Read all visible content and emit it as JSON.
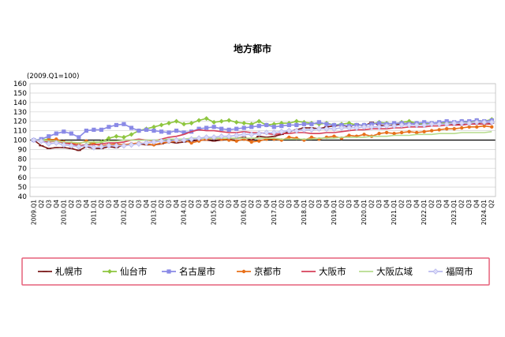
{
  "chart_data": {
    "type": "line",
    "title": "地方都市",
    "subtitle": "(2009.Q1=100)",
    "ylim": [
      40,
      160
    ],
    "ytick_step": 10,
    "grid": true,
    "legend_position": "bottom",
    "baseline": 100,
    "x": [
      "2009.Q1",
      "Q2",
      "Q3",
      "Q4",
      "2010.Q1",
      "Q2",
      "Q3",
      "Q4",
      "2011.Q1",
      "Q2",
      "Q3",
      "Q4",
      "2012.Q1",
      "Q2",
      "Q3",
      "Q4",
      "2013.Q1",
      "Q2",
      "Q3",
      "Q4",
      "2014.Q1",
      "Q2",
      "Q3",
      "Q4",
      "2015.Q1",
      "Q2",
      "Q3",
      "Q4",
      "2016.Q1",
      "Q2",
      "Q3",
      "Q4",
      "2017.Q1",
      "Q2",
      "Q3",
      "Q4",
      "2018.Q1",
      "Q2",
      "Q3",
      "Q4",
      "2019.Q1",
      "Q2",
      "Q3",
      "Q4",
      "2020.Q1",
      "Q2",
      "Q3",
      "Q4",
      "2021.Q1",
      "Q2",
      "Q3",
      "Q4",
      "2022.Q1",
      "Q2",
      "Q3",
      "Q4",
      "2023.Q1",
      "Q2",
      "Q3",
      "Q4",
      "2024.Q1",
      "Q2"
    ],
    "series": [
      {
        "name": "札幌市",
        "color": "#7a1a1a",
        "marker": "dash",
        "values": [
          100,
          94,
          91,
          92,
          92,
          91,
          89,
          93,
          91,
          91,
          93,
          92,
          95,
          96,
          96,
          95,
          95,
          96,
          98,
          97,
          98,
          99,
          100,
          100,
          99,
          100,
          101,
          102,
          103,
          100,
          104,
          103,
          104,
          106,
          109,
          111,
          113,
          113,
          112,
          114,
          115,
          116,
          114,
          117,
          115,
          119,
          116,
          115,
          116,
          117,
          118,
          117,
          116,
          117,
          118,
          118,
          116,
          117,
          118,
          118,
          119,
          118
        ]
      },
      {
        "name": "仙台市",
        "color": "#8ec63f",
        "marker": "diamond",
        "values": [
          100,
          100,
          101,
          100,
          97,
          96,
          94,
          95,
          97,
          98,
          102,
          104,
          103,
          106,
          110,
          112,
          114,
          116,
          118,
          120,
          117,
          118,
          121,
          123,
          119,
          120,
          121,
          119,
          118,
          117,
          120,
          116,
          117,
          118,
          118,
          120,
          119,
          118,
          117,
          118,
          116,
          117,
          118,
          116,
          116,
          117,
          119,
          118,
          117,
          119,
          120,
          118,
          117,
          118,
          117,
          119,
          118,
          120,
          119,
          121,
          120,
          122
        ]
      },
      {
        "name": "名古屋市",
        "color": "#8a8ae6",
        "marker": "square",
        "values": [
          100,
          101,
          104,
          107,
          109,
          107,
          103,
          110,
          111,
          111,
          114,
          116,
          117,
          113,
          110,
          111,
          110,
          109,
          108,
          110,
          108,
          109,
          112,
          113,
          114,
          112,
          111,
          112,
          113,
          114,
          115,
          116,
          114,
          115,
          116,
          116,
          117,
          117,
          119,
          117,
          116,
          116,
          115,
          116,
          116,
          117,
          118,
          117,
          118,
          118,
          117,
          118,
          119,
          118,
          119,
          120,
          119,
          120,
          120,
          121,
          120,
          121
        ]
      },
      {
        "name": "京都市",
        "color": "#e8701a",
        "marker": "dot",
        "values": [
          100,
          99,
          100,
          101,
          98,
          97,
          96,
          99,
          96,
          94,
          95,
          96,
          95,
          96,
          97,
          96,
          95,
          97,
          98,
          99,
          100,
          97,
          99,
          101,
          102,
          101,
          100,
          99,
          101,
          98,
          99,
          101,
          101,
          100,
          103,
          102,
          100,
          103,
          101,
          103,
          104,
          102,
          105,
          104,
          106,
          104,
          107,
          108,
          107,
          108,
          109,
          108,
          109,
          110,
          111,
          112,
          112,
          113,
          114,
          114,
          115,
          114
        ]
      },
      {
        "name": "大阪市",
        "color": "#d6405a",
        "marker": "none",
        "values": [
          100,
          99,
          98,
          99,
          97,
          96,
          94,
          95,
          95,
          96,
          97,
          97,
          98,
          100,
          101,
          100,
          99,
          101,
          103,
          104,
          106,
          109,
          111,
          110,
          110,
          109,
          108,
          108,
          109,
          108,
          108,
          107,
          106,
          107,
          107,
          108,
          108,
          107,
          107,
          108,
          108,
          109,
          110,
          111,
          111,
          112,
          112,
          112,
          113,
          113,
          114,
          114,
          114,
          115,
          115,
          116,
          116,
          116,
          117,
          117,
          117,
          117
        ]
      },
      {
        "name": "大阪広域",
        "color": "#b6dc8e",
        "marker": "none",
        "values": [
          100,
          100,
          99,
          99,
          98,
          98,
          97,
          98,
          98,
          98,
          99,
          99,
          100,
          100,
          100,
          100,
          100,
          100,
          101,
          101,
          101,
          102,
          102,
          102,
          102,
          102,
          102,
          102,
          102,
          102,
          102,
          102,
          102,
          101,
          101,
          101,
          101,
          101,
          102,
          102,
          102,
          103,
          103,
          103,
          103,
          104,
          104,
          104,
          105,
          105,
          105,
          106,
          106,
          106,
          107,
          107,
          107,
          108,
          108,
          108,
          108,
          109
        ]
      },
      {
        "name": "福岡市",
        "color": "#b8b8ee",
        "marker": "diamond-open",
        "values": [
          100,
          99,
          96,
          97,
          95,
          94,
          93,
          94,
          92,
          93,
          94,
          94,
          94,
          95,
          96,
          97,
          98,
          99,
          99,
          100,
          100,
          101,
          102,
          103,
          103,
          104,
          104,
          105,
          106,
          106,
          107,
          108,
          108,
          109,
          110,
          110,
          111,
          111,
          112,
          112,
          112,
          113,
          113,
          113,
          114,
          114,
          114,
          115,
          115,
          116,
          116,
          116,
          116,
          117,
          117,
          117,
          118,
          118,
          118,
          119,
          119,
          119
        ]
      }
    ]
  }
}
